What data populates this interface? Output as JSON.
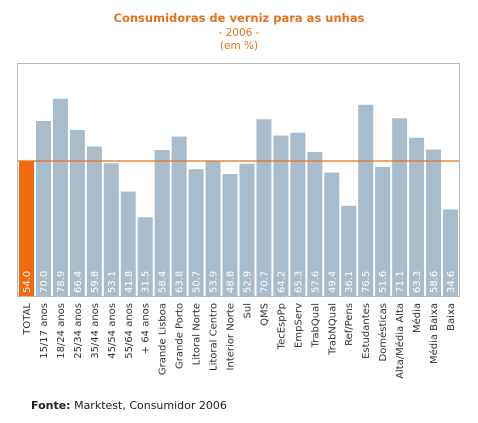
{
  "chart_data": {
    "type": "bar",
    "title": "Consumidoras de verniz para as unhas",
    "subtitle": "- 2006 -",
    "unit": "(em %)",
    "categories": [
      "TOTAL",
      "15/17 anos",
      "18/24 anos",
      "25/34 anos",
      "35/44 anos",
      "45/54 anos",
      "55/64 anos",
      "+ 64 anos",
      "Grande Lisboa",
      "Grande Porto",
      "Litoral Norte",
      "Litoral Centro",
      "Interior Norte",
      "Sul",
      "QMS",
      "TecEspPp",
      "EmpServ",
      "TrabQual",
      "TrabNQual",
      "Ref/Pens",
      "Estudantes",
      "Domésticas",
      "Alta/Média Alta",
      "Média",
      "Média Baixa",
      "Baixa"
    ],
    "values": [
      54.0,
      70.0,
      78.9,
      66.4,
      59.8,
      53.1,
      41.8,
      31.5,
      58.4,
      63.8,
      50.7,
      53.9,
      48.8,
      52.9,
      70.7,
      64.2,
      65.3,
      57.6,
      49.4,
      36.1,
      76.5,
      51.6,
      71.1,
      63.3,
      58.6,
      34.6
    ],
    "value_labels": [
      "54.0",
      "70.0",
      "78.9",
      "66.4",
      "59.8",
      "53.1",
      "41.8",
      "31.5",
      "58.4",
      "63.8",
      "50.7",
      "53.9",
      "48.8",
      "52.9",
      "70.7",
      "64.2",
      "65.3",
      "57.6",
      "49.4",
      "36.1",
      "76.5",
      "51.6",
      "71.1",
      "63.3",
      "58.6",
      "34.6"
    ],
    "reference_line": 54.0,
    "colors": {
      "highlight": "#f26a10",
      "bar": "#a9bccb",
      "reference": "#e8701a",
      "title": "#e8701a",
      "frame": "#b9b9b9"
    },
    "grid": false,
    "legend": "none"
  },
  "source": {
    "label": "Fonte:",
    "text": "Marktest, Consumidor 2006"
  }
}
